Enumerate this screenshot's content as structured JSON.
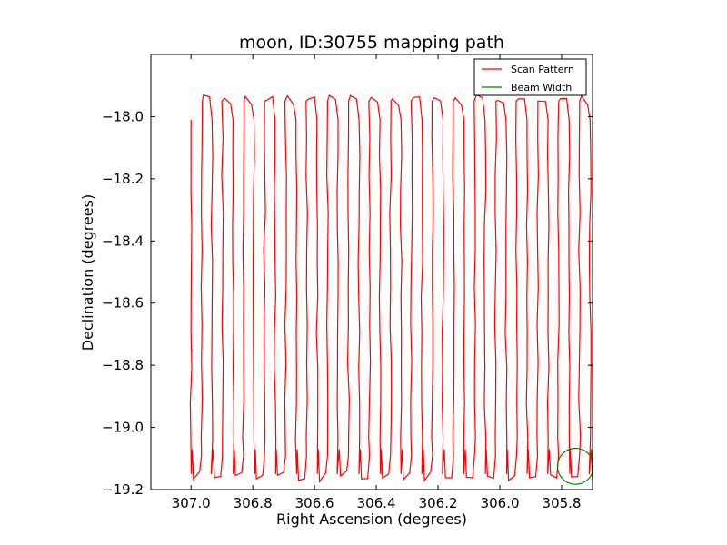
{
  "chart_data": {
    "type": "line",
    "title": "moon, ID:30755 mapping path",
    "xlabel": "Right Ascension (degrees)",
    "ylabel": "Declination (degrees)",
    "xlim": [
      307.13,
      305.7
    ],
    "ylim": [
      -19.2,
      -17.8
    ],
    "x_inverted": true,
    "xticks": [
      307.0,
      306.8,
      306.6,
      306.4,
      306.2,
      306.0,
      305.8
    ],
    "xtick_labels": [
      "307.0",
      "306.8",
      "306.6",
      "306.4",
      "306.2",
      "306.0",
      "305.8"
    ],
    "yticks": [
      -18.0,
      -18.2,
      -18.4,
      -18.6,
      -18.8,
      -19.0,
      -19.2
    ],
    "ytick_labels": [
      "−18.0",
      "−18.2",
      "−18.4",
      "−18.6",
      "−18.8",
      "−19.0",
      "−19.2"
    ],
    "grid": false,
    "legend_placement": "top-right",
    "series": [
      {
        "name": "Scan Pattern",
        "color": "#ff0000",
        "style": "boustrophedon",
        "start": [
          307.0,
          -18.01
        ],
        "end_ra": 305.7,
        "ra_step": 0.034,
        "dec_top": -17.95,
        "dec_bottom": -19.15
      },
      {
        "name": "Beam Width",
        "color": "#008000",
        "style": "circle",
        "center": [
          305.755,
          -19.125
        ],
        "radius_dec": 0.058
      }
    ]
  }
}
